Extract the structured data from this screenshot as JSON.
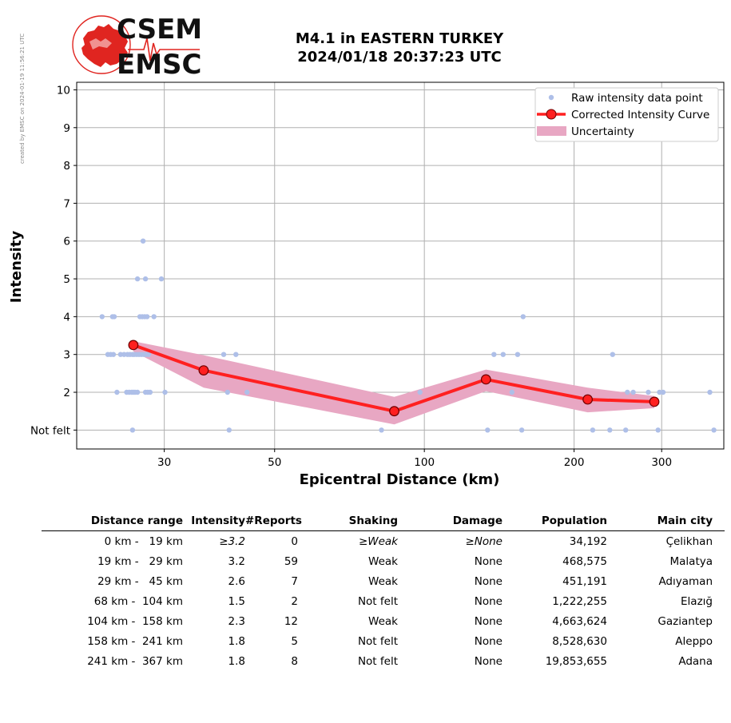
{
  "side_note": "created by EMSC on 2024-01-19 11:56:21 UTC",
  "logo": {
    "line1": "CSEM",
    "line2": "EMSC"
  },
  "title": {
    "line1": "M4.1 in EASTERN TURKEY",
    "line2": "2024/01/18 20:37:23 UTC"
  },
  "colors": {
    "raw": "#aebfe8",
    "curve": "#ff2020",
    "marker_edge": "#700000",
    "band": "#e8a7c3",
    "logo_red": "#e02520"
  },
  "chart_data": {
    "type": "scatter",
    "title": "M4.1 in EASTERN TURKEY 2024/01/18 20:37:23 UTC",
    "xlabel": "Epicentral Distance (km)",
    "ylabel": "Intensity",
    "x_scale": "log",
    "xlim": [
      20,
      400
    ],
    "ylim": [
      0.5,
      10.2
    ],
    "x_ticks": [
      30,
      50,
      100,
      200,
      300
    ],
    "y_ticks": [
      {
        "value": 1,
        "label": "Not felt"
      },
      {
        "value": 2,
        "label": "2"
      },
      {
        "value": 3,
        "label": "3"
      },
      {
        "value": 4,
        "label": "4"
      },
      {
        "value": 5,
        "label": "5"
      },
      {
        "value": 6,
        "label": "6"
      },
      {
        "value": 7,
        "label": "7"
      },
      {
        "value": 8,
        "label": "8"
      },
      {
        "value": 9,
        "label": "9"
      },
      {
        "value": 10,
        "label": "10"
      }
    ],
    "grid": true,
    "legend_position": "top-right",
    "legend": [
      "Raw intensity data point",
      "Corrected Intensity Curve",
      "Uncertainty"
    ],
    "series": [
      {
        "name": "Raw intensity data point",
        "type": "scatter",
        "points": [
          [
            22.5,
            4
          ],
          [
            23.6,
            4
          ],
          [
            23.8,
            4
          ],
          [
            23.1,
            3
          ],
          [
            23.4,
            3
          ],
          [
            23.7,
            3
          ],
          [
            24.1,
            2
          ],
          [
            24.5,
            3
          ],
          [
            24.9,
            3
          ],
          [
            25.3,
            3
          ],
          [
            25.6,
            3
          ],
          [
            25.9,
            3
          ],
          [
            26.1,
            3
          ],
          [
            26.4,
            3
          ],
          [
            26.7,
            3
          ],
          [
            25.2,
            2
          ],
          [
            25.5,
            2
          ],
          [
            25.8,
            2
          ],
          [
            26.0,
            2
          ],
          [
            26.2,
            2
          ],
          [
            26.5,
            2
          ],
          [
            25.9,
            1
          ],
          [
            26.5,
            5
          ],
          [
            27.5,
            5
          ],
          [
            26.8,
            4
          ],
          [
            27.1,
            4
          ],
          [
            27.4,
            4
          ],
          [
            27.7,
            4
          ],
          [
            27.0,
            3
          ],
          [
            27.3,
            3
          ],
          [
            27.6,
            3
          ],
          [
            27.9,
            3
          ],
          [
            27.2,
            6
          ],
          [
            27.5,
            2
          ],
          [
            27.8,
            2
          ],
          [
            28.1,
            2
          ],
          [
            28.6,
            4
          ],
          [
            29.6,
            5
          ],
          [
            30.1,
            2
          ],
          [
            39.5,
            3
          ],
          [
            40.2,
            2
          ],
          [
            40.5,
            1
          ],
          [
            41.8,
            3
          ],
          [
            44.0,
            2
          ],
          [
            82.0,
            1
          ],
          [
            98.0,
            2
          ],
          [
            134.0,
            1
          ],
          [
            138.0,
            3
          ],
          [
            144.0,
            3
          ],
          [
            150.0,
            2
          ],
          [
            154.0,
            3
          ],
          [
            157.0,
            1
          ],
          [
            158.0,
            4
          ],
          [
            218.0,
            1
          ],
          [
            236.0,
            1
          ],
          [
            239.0,
            3
          ],
          [
            254.0,
            1
          ],
          [
            256.0,
            2
          ],
          [
            263.0,
            2
          ],
          [
            282.0,
            2
          ],
          [
            295.0,
            1
          ],
          [
            297.0,
            2
          ],
          [
            302.0,
            2
          ],
          [
            375.0,
            2
          ],
          [
            382.0,
            1
          ]
        ]
      },
      {
        "name": "Corrected Intensity Curve",
        "type": "line",
        "x": [
          26,
          36,
          87,
          133,
          213,
          290
        ],
        "y": [
          3.25,
          2.58,
          1.5,
          2.34,
          1.81,
          1.75
        ]
      },
      {
        "name": "Uncertainty",
        "type": "area",
        "x": [
          26,
          36,
          87,
          133,
          213,
          290
        ],
        "y_low": [
          3.08,
          2.12,
          1.15,
          2.03,
          1.47,
          1.58
        ],
        "y_high": [
          3.35,
          2.98,
          1.88,
          2.6,
          2.12,
          1.9
        ]
      }
    ]
  },
  "table": {
    "headers": [
      "Distance range",
      "Intensity",
      "#Reports",
      "Shaking",
      "Damage",
      "Population",
      "Main city"
    ],
    "rows": [
      {
        "range": "0 km -   19 km",
        "intensity": "≥3.2",
        "reports": "0",
        "shaking": "≥Weak",
        "damage": "≥None",
        "population": "34,192",
        "city": "Çelikhan",
        "italic": true
      },
      {
        "range": "19 km -   29 km",
        "intensity": "3.2",
        "reports": "59",
        "shaking": "Weak",
        "damage": "None",
        "population": "468,575",
        "city": "Malatya",
        "italic": false
      },
      {
        "range": "29 km -   45 km",
        "intensity": "2.6",
        "reports": "7",
        "shaking": "Weak",
        "damage": "None",
        "population": "451,191",
        "city": "Adıyaman",
        "italic": false
      },
      {
        "range": "68 km -  104 km",
        "intensity": "1.5",
        "reports": "2",
        "shaking": "Not felt",
        "damage": "None",
        "population": "1,222,255",
        "city": "Elazığ",
        "italic": false
      },
      {
        "range": "104 km -  158 km",
        "intensity": "2.3",
        "reports": "12",
        "shaking": "Weak",
        "damage": "None",
        "population": "4,663,624",
        "city": "Gaziantep",
        "italic": false
      },
      {
        "range": "158 km -  241 km",
        "intensity": "1.8",
        "reports": "5",
        "shaking": "Not felt",
        "damage": "None",
        "population": "8,528,630",
        "city": "Aleppo",
        "italic": false
      },
      {
        "range": "241 km -  367 km",
        "intensity": "1.8",
        "reports": "8",
        "shaking": "Not felt",
        "damage": "None",
        "population": "19,853,655",
        "city": "Adana",
        "italic": false
      }
    ]
  }
}
